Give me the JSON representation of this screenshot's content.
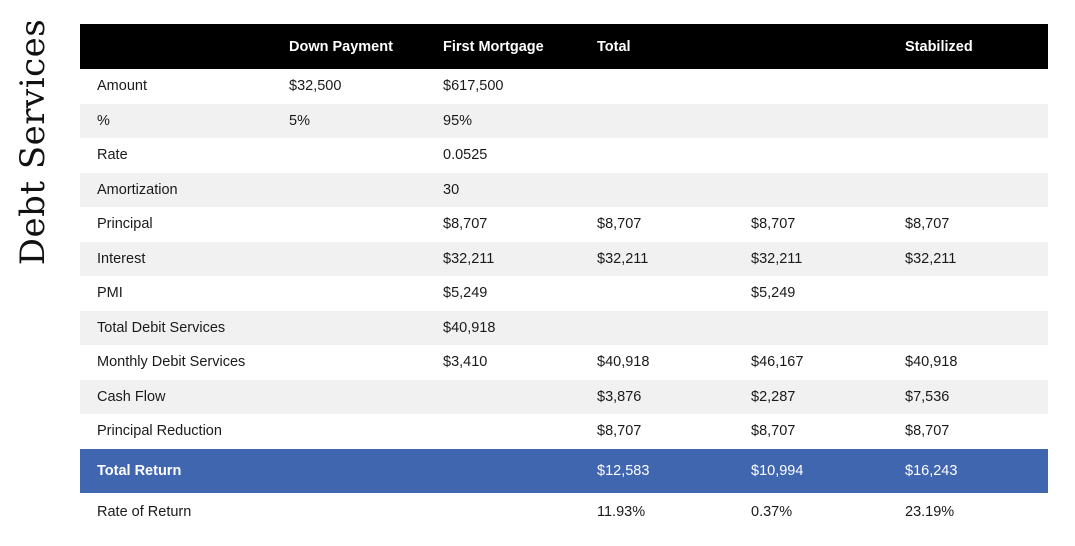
{
  "side_title": "Debt Services",
  "columns": [
    "",
    "Down Payment",
    "First Mortgage",
    "Total",
    "",
    "Stabilized"
  ],
  "rows": [
    {
      "cells": [
        "Amount",
        "$32,500",
        "$617,500",
        "",
        "",
        ""
      ],
      "style": "plain"
    },
    {
      "cells": [
        "%",
        "5%",
        "95%",
        "",
        "",
        ""
      ],
      "style": "shade"
    },
    {
      "cells": [
        "Rate",
        "",
        "0.0525",
        "",
        "",
        ""
      ],
      "style": "plain"
    },
    {
      "cells": [
        "Amortization",
        "",
        "30",
        "",
        "",
        ""
      ],
      "style": "shade"
    },
    {
      "cells": [
        "Principal",
        "",
        "$8,707",
        "$8,707",
        "$8,707",
        "$8,707"
      ],
      "style": "plain"
    },
    {
      "cells": [
        "Interest",
        "",
        "$32,211",
        "$32,211",
        "$32,211",
        "$32,211"
      ],
      "style": "shade"
    },
    {
      "cells": [
        "PMI",
        "",
        "$5,249",
        "",
        "$5,249",
        ""
      ],
      "style": "plain"
    },
    {
      "cells": [
        "Total Debit Services",
        "",
        "$40,918",
        "",
        "",
        ""
      ],
      "style": "shade"
    },
    {
      "cells": [
        "Monthly Debit Services",
        "",
        "$3,410",
        "$40,918",
        "$46,167",
        "$40,918"
      ],
      "style": "plain"
    },
    {
      "cells": [
        "Cash Flow",
        "",
        "",
        "$3,876",
        "$2,287",
        "$7,536"
      ],
      "style": "shade"
    },
    {
      "cells": [
        "Principal Reduction",
        "",
        "",
        "$8,707",
        "$8,707",
        "$8,707"
      ],
      "style": "plain"
    },
    {
      "cells": [
        "Total Return",
        "",
        "",
        "$12,583",
        "$10,994",
        "$16,243"
      ],
      "style": "total"
    },
    {
      "cells": [
        "Rate of Return",
        "",
        "",
        "11.93%",
        "0.37%",
        "23.19%"
      ],
      "style": "last"
    }
  ],
  "colors": {
    "header_bg": "#000000",
    "total_row_bg": "#4066b0",
    "shade_row_bg": "#f1f1f1"
  }
}
